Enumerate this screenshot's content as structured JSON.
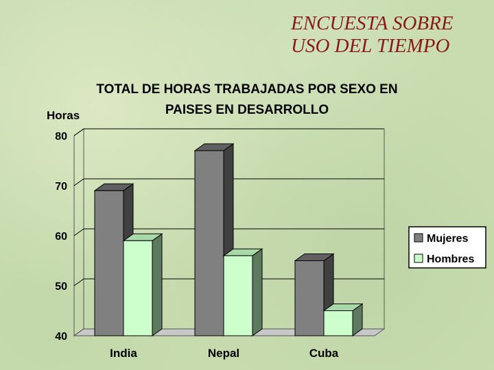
{
  "slide": {
    "title_line1": "ENCUESTA SOBRE",
    "title_line2": "USO DEL TIEMPO"
  },
  "chart_data": {
    "type": "bar",
    "title_line1": "TOTAL DE HORAS TRABAJADAS POR SEXO EN",
    "title_line2": "PAISES EN DESARROLLO",
    "ylabel": "Horas",
    "xlabel": "",
    "categories": [
      "India",
      "Nepal",
      "Cuba"
    ],
    "series": [
      {
        "name": "Mujeres",
        "values": [
          69,
          77,
          55
        ],
        "color": "#808080",
        "side_color": "#404040",
        "top_color": "#606060"
      },
      {
        "name": "Hombres",
        "values": [
          59,
          56,
          45
        ],
        "color": "#ccffcc",
        "side_color": "#5e7a5e",
        "top_color": "#a8d8a8"
      }
    ],
    "ylim": [
      40,
      80
    ],
    "yticks": [
      40,
      50,
      60,
      70,
      80
    ],
    "grid": true,
    "chart_style": "3d",
    "legend_position": "right"
  }
}
